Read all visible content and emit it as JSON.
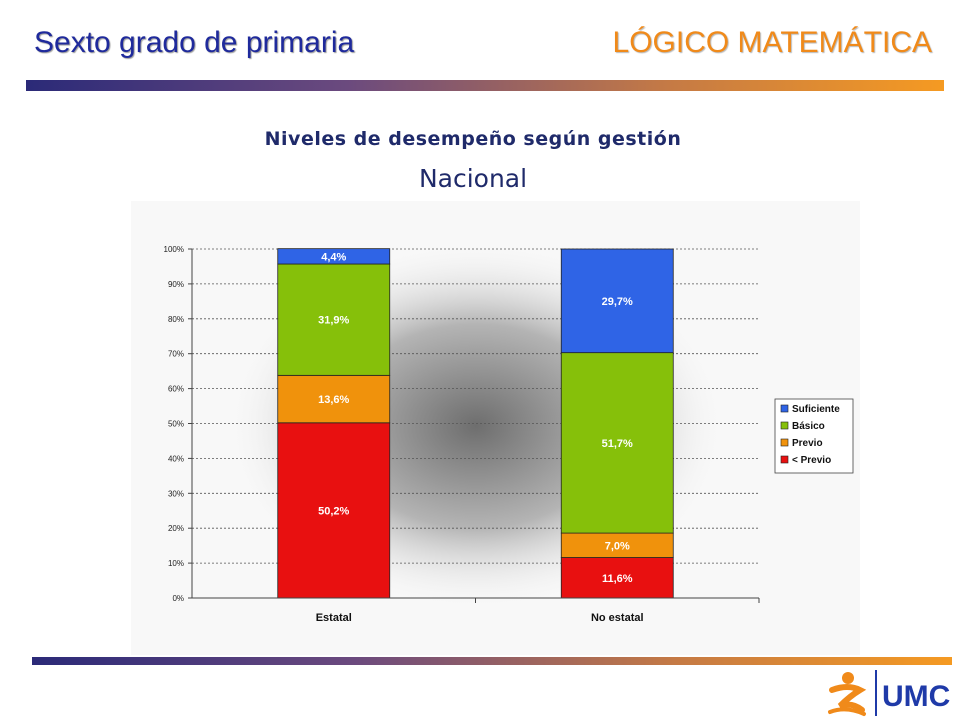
{
  "header": {
    "left_title": "Sexto grado de primaria",
    "right_title": "LÓGICO MATEMÁTICA"
  },
  "chart_data": {
    "type": "bar",
    "stacked": true,
    "title": "Niveles de desempeño según gestión",
    "subtitle": "Nacional",
    "categories": [
      "Estatal",
      "No estatal"
    ],
    "series": [
      {
        "name": "< Previo",
        "values": [
          50.2,
          11.6
        ],
        "labels": [
          "50,2%",
          "11,6%"
        ],
        "color": "#e81010"
      },
      {
        "name": "Previo",
        "values": [
          13.6,
          7.0
        ],
        "labels": [
          "13,6%",
          "7,0%"
        ],
        "color": "#f0920c"
      },
      {
        "name": "Básico",
        "values": [
          31.9,
          51.7
        ],
        "labels": [
          "31,9%",
          "51,7%"
        ],
        "color": "#86c00a"
      },
      {
        "name": "Suficiente",
        "values": [
          4.4,
          29.7
        ],
        "labels": [
          "4,4%",
          "29,7%"
        ],
        "color": "#2f64e6"
      }
    ],
    "ylim": [
      0,
      100
    ],
    "yticks": [
      "0%",
      "10%",
      "20%",
      "30%",
      "40%",
      "50%",
      "60%",
      "70%",
      "80%",
      "90%",
      "100%"
    ],
    "grid": true,
    "legend_position": "right"
  },
  "logo": {
    "text": "UMC",
    "colors": {
      "orange": "#f08a1a",
      "blue": "#1f3aa8"
    }
  }
}
